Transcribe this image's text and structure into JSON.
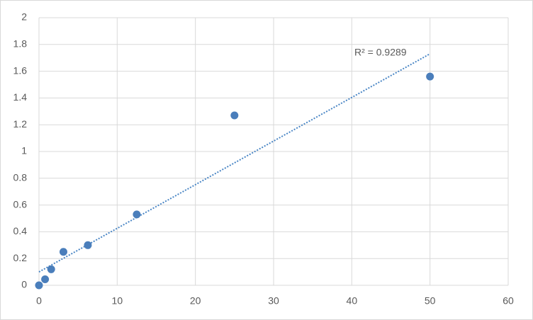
{
  "chart_data": {
    "type": "scatter",
    "x": [
      0,
      0.78,
      1.56,
      3.125,
      6.25,
      12.5,
      25,
      50
    ],
    "series": [
      {
        "color": "#4a7ebb",
        "values": [
          0,
          0.045,
          0.12,
          0.25,
          0.3,
          0.53,
          1.27,
          1.56
        ]
      }
    ],
    "trendline": {
      "color": "#4a86c5",
      "x": [
        0,
        50
      ],
      "values": [
        0.1,
        1.73
      ]
    },
    "annotation": "R² = 0.9289",
    "xlim": [
      0,
      60
    ],
    "xticks": [
      0,
      10,
      20,
      30,
      40,
      50,
      60
    ],
    "ylim": [
      0,
      2
    ],
    "yticks": [
      0,
      0.2,
      0.4,
      0.6,
      0.8,
      1,
      1.2,
      1.4,
      1.6,
      1.8,
      2
    ],
    "grid": true
  }
}
